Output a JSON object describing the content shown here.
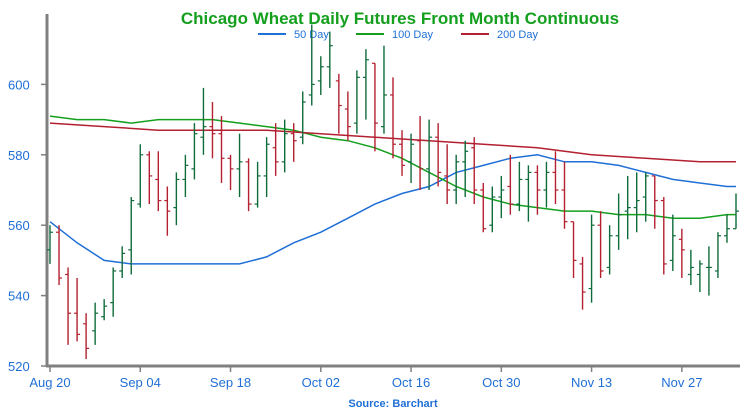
{
  "chart_data": {
    "type": "ohlc",
    "title": "Chicago Wheat Daily Futures Front Month Continuous",
    "source": "Source: Barchart",
    "legend_placement": "top-center",
    "grid": false,
    "ylim": [
      520,
      620
    ],
    "y_ticks": [
      520,
      540,
      560,
      580,
      600
    ],
    "x_ticks": [
      {
        "label": "Aug 20",
        "date": "2024-08-20"
      },
      {
        "label": "Sep 04",
        "date": "2024-09-04"
      },
      {
        "label": "Sep 18",
        "date": "2024-09-18"
      },
      {
        "label": "Oct 02",
        "date": "2024-10-02"
      },
      {
        "label": "Oct 16",
        "date": "2024-10-16"
      },
      {
        "label": "Oct 30",
        "date": "2024-10-30"
      },
      {
        "label": "Nov 13",
        "date": "2024-11-13"
      },
      {
        "label": "Nov 27",
        "date": "2024-11-27"
      }
    ],
    "colors": {
      "up": "#0e6b3a",
      "down": "#b3202f",
      "axis": "#808080",
      "labels": "#1f6fd6",
      "title": "#14a01e"
    },
    "dates": [
      "2024-08-20",
      "2024-08-21",
      "2024-08-22",
      "2024-08-23",
      "2024-08-26",
      "2024-08-27",
      "2024-08-28",
      "2024-08-29",
      "2024-08-30",
      "2024-09-03",
      "2024-09-04",
      "2024-09-05",
      "2024-09-06",
      "2024-09-09",
      "2024-09-10",
      "2024-09-11",
      "2024-09-12",
      "2024-09-13",
      "2024-09-16",
      "2024-09-17",
      "2024-09-18",
      "2024-09-19",
      "2024-09-20",
      "2024-09-23",
      "2024-09-24",
      "2024-09-25",
      "2024-09-26",
      "2024-09-27",
      "2024-09-30",
      "2024-10-01",
      "2024-10-02",
      "2024-10-03",
      "2024-10-04",
      "2024-10-07",
      "2024-10-08",
      "2024-10-09",
      "2024-10-10",
      "2024-10-11",
      "2024-10-14",
      "2024-10-15",
      "2024-10-16",
      "2024-10-17",
      "2024-10-18",
      "2024-10-21",
      "2024-10-22",
      "2024-10-23",
      "2024-10-24",
      "2024-10-25",
      "2024-10-28",
      "2024-10-29",
      "2024-10-30",
      "2024-10-31",
      "2024-11-01",
      "2024-11-04",
      "2024-11-05",
      "2024-11-06",
      "2024-11-07",
      "2024-11-08",
      "2024-11-11",
      "2024-11-12",
      "2024-11-13",
      "2024-11-14",
      "2024-11-15",
      "2024-11-18",
      "2024-11-19",
      "2024-11-20",
      "2024-11-21",
      "2024-11-22",
      "2024-11-25",
      "2024-11-26",
      "2024-11-27",
      "2024-11-29",
      "2024-12-02",
      "2024-12-03",
      "2024-12-04",
      "2024-12-05",
      "2024-12-06"
    ],
    "ohlc": [
      [
        553,
        560,
        549,
        558
      ],
      [
        558,
        560,
        543,
        545
      ],
      [
        546,
        548,
        526,
        535
      ],
      [
        535,
        545,
        527,
        529
      ],
      [
        532,
        535,
        522,
        525
      ],
      [
        530,
        538,
        526,
        535
      ],
      [
        534,
        539,
        533,
        537
      ],
      [
        538,
        548,
        534,
        547
      ],
      [
        547,
        554,
        545,
        552
      ],
      [
        553,
        568,
        546,
        567
      ],
      [
        566,
        583,
        565,
        580
      ],
      [
        580,
        581,
        566,
        574
      ],
      [
        573,
        581,
        564,
        567
      ],
      [
        567,
        571,
        557,
        564
      ],
      [
        565,
        575,
        560,
        573
      ],
      [
        573,
        580,
        568,
        577
      ],
      [
        576,
        589,
        573,
        586
      ],
      [
        585,
        599,
        580,
        588
      ],
      [
        588,
        595,
        579,
        586
      ],
      [
        586,
        591,
        572,
        579
      ],
      [
        579,
        580,
        570,
        576
      ],
      [
        576,
        586,
        568,
        578
      ],
      [
        578,
        579,
        564,
        566
      ],
      [
        566,
        578,
        565,
        574
      ],
      [
        574,
        585,
        568,
        583
      ],
      [
        582,
        589,
        574,
        578
      ],
      [
        578,
        590,
        575,
        586
      ],
      [
        586,
        589,
        578,
        584
      ],
      [
        585,
        598,
        583,
        595
      ],
      [
        597,
        617,
        594,
        600
      ],
      [
        601,
        608,
        597,
        605
      ],
      [
        605,
        615,
        599,
        611
      ],
      [
        601,
        603,
        586,
        594
      ],
      [
        593,
        598,
        584,
        588
      ],
      [
        589,
        604,
        586,
        602
      ],
      [
        602,
        610,
        590,
        607
      ],
      [
        606,
        606,
        581,
        589
      ],
      [
        588,
        611,
        586,
        597
      ],
      [
        597,
        602,
        579,
        583
      ],
      [
        583,
        587,
        574,
        577
      ],
      [
        578,
        586,
        572,
        583
      ],
      [
        584,
        591,
        570,
        576
      ],
      [
        576,
        590,
        570,
        585
      ],
      [
        585,
        589,
        571,
        575
      ],
      [
        574,
        583,
        566,
        570
      ],
      [
        570,
        580,
        566,
        578
      ],
      [
        578,
        584,
        568,
        581
      ],
      [
        582,
        585,
        566,
        570
      ],
      [
        570,
        572,
        558,
        559
      ],
      [
        560,
        571,
        558,
        568
      ],
      [
        568,
        574,
        562,
        570
      ],
      [
        571,
        580,
        563,
        566
      ],
      [
        566,
        578,
        564,
        573
      ],
      [
        573,
        577,
        561,
        575
      ],
      [
        575,
        577,
        563,
        570
      ],
      [
        570,
        578,
        565,
        575
      ],
      [
        575,
        581,
        566,
        570
      ],
      [
        570,
        578,
        559,
        561
      ],
      [
        561,
        561,
        545,
        550
      ],
      [
        549,
        551,
        536,
        541
      ],
      [
        542,
        563,
        538,
        560
      ],
      [
        560,
        564,
        545,
        547
      ],
      [
        548,
        560,
        546,
        557
      ],
      [
        557,
        569,
        553,
        563
      ],
      [
        564,
        574,
        556,
        565
      ],
      [
        565,
        575,
        558,
        567
      ],
      [
        568,
        575,
        561,
        574
      ],
      [
        574,
        574,
        559,
        567
      ],
      [
        567,
        568,
        546,
        549
      ],
      [
        550,
        563,
        547,
        557
      ],
      [
        556,
        559,
        545,
        553
      ],
      [
        546,
        553,
        543,
        548
      ],
      [
        546,
        550,
        541,
        549
      ],
      [
        548,
        554,
        540,
        548
      ],
      [
        547,
        558,
        545,
        557
      ],
      [
        557,
        563,
        555,
        559
      ],
      [
        559,
        569,
        559,
        564
      ]
    ],
    "series": [
      {
        "name": "50 Day",
        "color": "#1f6fd6",
        "points": [
          [
            0,
            561
          ],
          [
            3,
            555
          ],
          [
            6,
            550
          ],
          [
            9,
            549
          ],
          [
            12,
            549
          ],
          [
            15,
            549
          ],
          [
            18,
            549
          ],
          [
            21,
            549
          ],
          [
            24,
            551
          ],
          [
            27,
            555
          ],
          [
            30,
            558
          ],
          [
            33,
            562
          ],
          [
            36,
            566
          ],
          [
            39,
            569
          ],
          [
            42,
            571
          ],
          [
            45,
            575
          ],
          [
            48,
            577
          ],
          [
            51,
            579
          ],
          [
            54,
            580
          ],
          [
            57,
            578
          ],
          [
            60,
            578
          ],
          [
            63,
            577
          ],
          [
            66,
            575
          ],
          [
            69,
            573
          ],
          [
            72,
            572
          ],
          [
            75,
            571
          ],
          [
            76,
            571
          ]
        ]
      },
      {
        "name": "100 Day",
        "color": "#14a01e",
        "points": [
          [
            0,
            591
          ],
          [
            3,
            590
          ],
          [
            6,
            590
          ],
          [
            9,
            589
          ],
          [
            12,
            590
          ],
          [
            15,
            590
          ],
          [
            18,
            590
          ],
          [
            21,
            589
          ],
          [
            24,
            588
          ],
          [
            27,
            587
          ],
          [
            30,
            585
          ],
          [
            33,
            584
          ],
          [
            36,
            582
          ],
          [
            39,
            579
          ],
          [
            42,
            575
          ],
          [
            45,
            571
          ],
          [
            48,
            568
          ],
          [
            51,
            566
          ],
          [
            54,
            565
          ],
          [
            57,
            564
          ],
          [
            60,
            564
          ],
          [
            63,
            563
          ],
          [
            66,
            563
          ],
          [
            69,
            562
          ],
          [
            72,
            562
          ],
          [
            75,
            563
          ],
          [
            76,
            563
          ]
        ]
      },
      {
        "name": "200 Day",
        "color": "#b3202f",
        "points": [
          [
            0,
            589
          ],
          [
            6,
            588
          ],
          [
            12,
            587
          ],
          [
            18,
            587
          ],
          [
            24,
            587
          ],
          [
            30,
            586
          ],
          [
            36,
            585
          ],
          [
            42,
            584
          ],
          [
            48,
            583
          ],
          [
            54,
            582
          ],
          [
            60,
            580
          ],
          [
            66,
            579
          ],
          [
            72,
            578
          ],
          [
            76,
            578
          ]
        ]
      }
    ]
  }
}
